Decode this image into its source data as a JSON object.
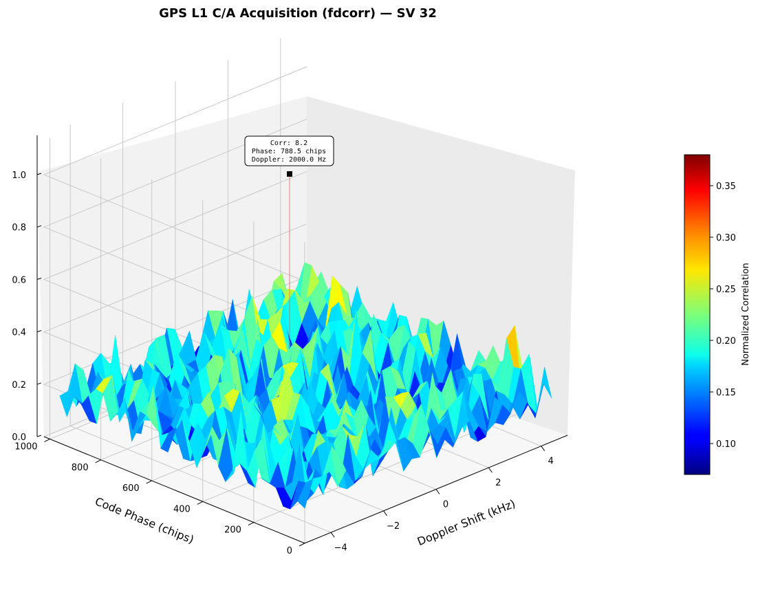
{
  "chart_data": {
    "type": "surface3d",
    "title": "GPS L1 C/A Acquisition (fdcorr) — SV 32",
    "xlabel": "Doppler Shift (kHz)",
    "ylabel": "Code Phase (chips)",
    "zlabel": "",
    "x_ticks": [
      "−4",
      "−2",
      "0",
      "2",
      "4"
    ],
    "x_tick_values": [
      -4,
      -2,
      0,
      2,
      4
    ],
    "xlim": [
      -5,
      5
    ],
    "y_ticks": [
      "0",
      "200",
      "400",
      "600",
      "800",
      "1000"
    ],
    "y_tick_values": [
      0,
      200,
      400,
      600,
      800,
      1000
    ],
    "ylim": [
      0,
      1023
    ],
    "z_ticks": [
      "0.0",
      "0.2",
      "0.4",
      "0.6",
      "0.8",
      "1.0"
    ],
    "z_tick_values": [
      0.0,
      0.2,
      0.4,
      0.6,
      0.8,
      1.0
    ],
    "zlim": [
      0,
      1.15
    ],
    "colormap": "jet",
    "colorbar": {
      "label": "Normalized Correlation",
      "range": [
        0.07,
        0.38
      ],
      "ticks": [
        "0.10",
        "0.15",
        "0.20",
        "0.25",
        "0.30",
        "0.35"
      ],
      "tick_values": [
        0.1,
        0.15,
        0.2,
        0.25,
        0.3,
        0.35
      ]
    },
    "surface": {
      "noise_floor_range": [
        0.08,
        0.28
      ]
    },
    "peak": {
      "doppler_khz": 2.0,
      "code_phase_chips": 788.5,
      "z": 1.0,
      "annotation_lines": [
        "Corr: 8.2",
        "Phase: 788.5 chips",
        "Doppler: 2000.0 Hz"
      ]
    },
    "grid": true
  }
}
